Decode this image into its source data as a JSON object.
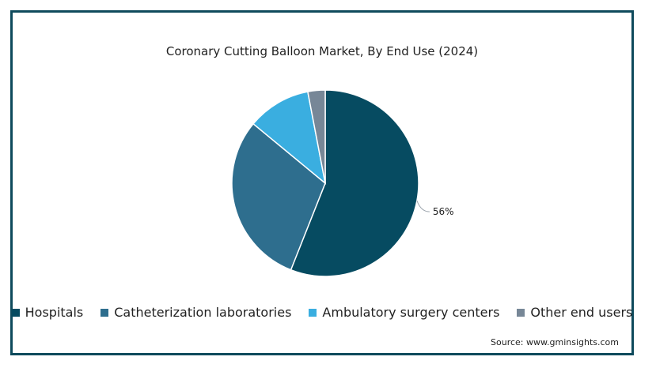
{
  "chart_data": {
    "type": "pie",
    "title": "Coronary Cutting Balloon Market, By End Use (2024)",
    "categories": [
      "Hospitals",
      "Catheterization laboratories",
      "Ambulatory surgery centers",
      "Other end users"
    ],
    "values": [
      56,
      30,
      11,
      3
    ],
    "unit": "%",
    "data_labels": [
      "56%",
      "",
      "",
      ""
    ],
    "colors": [
      "#064b61",
      "#2e6e8e",
      "#3aaee0",
      "#778797"
    ],
    "legend_position": "bottom"
  },
  "source": "Source: www.gminsights.com"
}
